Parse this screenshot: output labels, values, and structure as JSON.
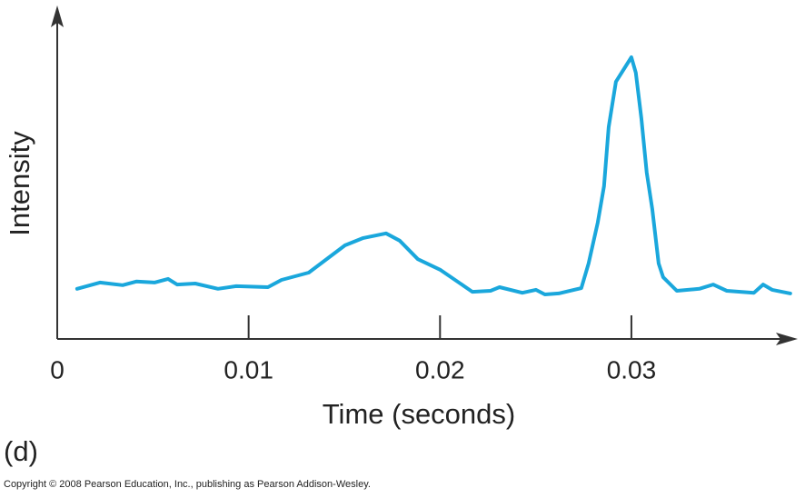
{
  "chart_data": {
    "type": "line",
    "xlabel": "Time (seconds)",
    "ylabel": "Intensity",
    "panel_label": "(d)",
    "copyright": "Copyright © 2008 Pearson Education, Inc., publishing as Pearson Addison-Wesley.",
    "xlim": [
      0,
      0.0385
    ],
    "xticks": [
      0,
      0.01,
      0.02,
      0.03
    ],
    "ylim": [
      0,
      100
    ],
    "color": "#1aa7dc",
    "x": [
      0.00104,
      0.00223,
      0.00342,
      0.00413,
      0.00508,
      0.00579,
      0.00626,
      0.00721,
      0.0084,
      0.00935,
      0.01101,
      0.01172,
      0.01314,
      0.01504,
      0.01599,
      0.01718,
      0.01789,
      0.01884,
      0.02003,
      0.02169,
      0.02264,
      0.02311,
      0.0243,
      0.02501,
      0.02548,
      0.0262,
      0.02738,
      0.02776,
      0.02824,
      0.02857,
      0.02881,
      0.02919,
      0.03,
      0.03023,
      0.03052,
      0.0308,
      0.03109,
      0.03142,
      0.03166,
      0.03237,
      0.03355,
      0.03427,
      0.03498,
      0.0364,
      0.03688,
      0.03735,
      0.0383
    ],
    "values": [
      15.2,
      17.1,
      16.3,
      17.4,
      17.1,
      18.2,
      16.5,
      16.8,
      15.2,
      16.0,
      15.7,
      17.9,
      20.1,
      28.4,
      30.6,
      32.0,
      29.8,
      24.2,
      20.9,
      14.3,
      14.6,
      15.7,
      14.0,
      14.9,
      13.5,
      13.8,
      15.4,
      22.9,
      35.3,
      46.3,
      64.2,
      78.0,
      85.4,
      80.7,
      66.9,
      50.4,
      39.4,
      22.9,
      18.7,
      14.6,
      15.2,
      16.5,
      14.6,
      14.0,
      16.5,
      14.9,
      13.8
    ]
  }
}
